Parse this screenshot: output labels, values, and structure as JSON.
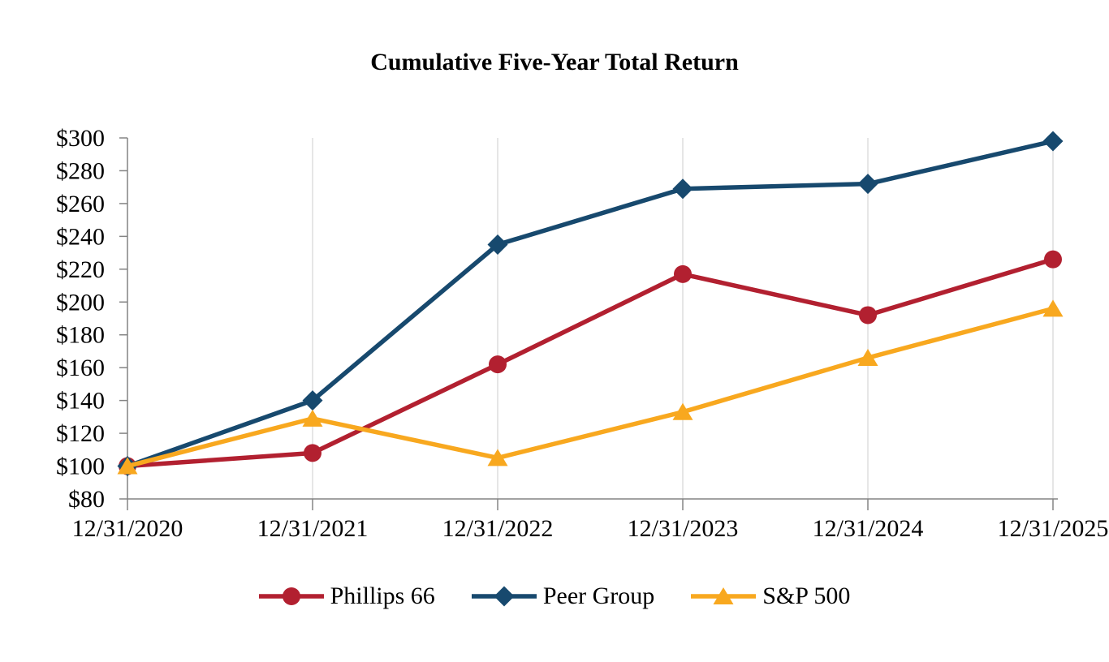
{
  "page": {
    "background": "#FFFFFF",
    "text_color": "#000000"
  },
  "chart_data": {
    "type": "line",
    "title": "Cumulative Five-Year Total Return",
    "categories": [
      "12/31/2020",
      "12/31/2021",
      "12/31/2022",
      "12/31/2023",
      "12/31/2024",
      "12/31/2025"
    ],
    "series": [
      {
        "name": "Phillips 66",
        "marker": "circle",
        "color": "#B22030",
        "values": [
          100,
          108,
          162,
          217,
          192,
          226
        ]
      },
      {
        "name": "Peer Group",
        "marker": "diamond",
        "color": "#17496E",
        "values": [
          100,
          140,
          235,
          269,
          272,
          298
        ]
      },
      {
        "name": "S&P 500",
        "marker": "triangle",
        "color": "#F8A81F",
        "values": [
          100,
          129,
          105,
          133,
          166,
          196
        ]
      }
    ],
    "y_axis": {
      "min": 80,
      "max": 300,
      "step": 20,
      "tick_labels": [
        "$80",
        "$100",
        "$120",
        "$140",
        "$160",
        "$180",
        "$200",
        "$220",
        "$240",
        "$260",
        "$280",
        "$300"
      ]
    },
    "x_axis": {
      "tick_labels": [
        "12/31/2020",
        "12/31/2021",
        "12/31/2022",
        "12/31/2023",
        "12/31/2024",
        "12/31/2025"
      ]
    },
    "legend_position": "bottom",
    "grid": {
      "vertical": true,
      "horizontal": false,
      "color": "#DBDBDB"
    },
    "axis_color": "#848484",
    "ylim": [
      80,
      300
    ]
  }
}
